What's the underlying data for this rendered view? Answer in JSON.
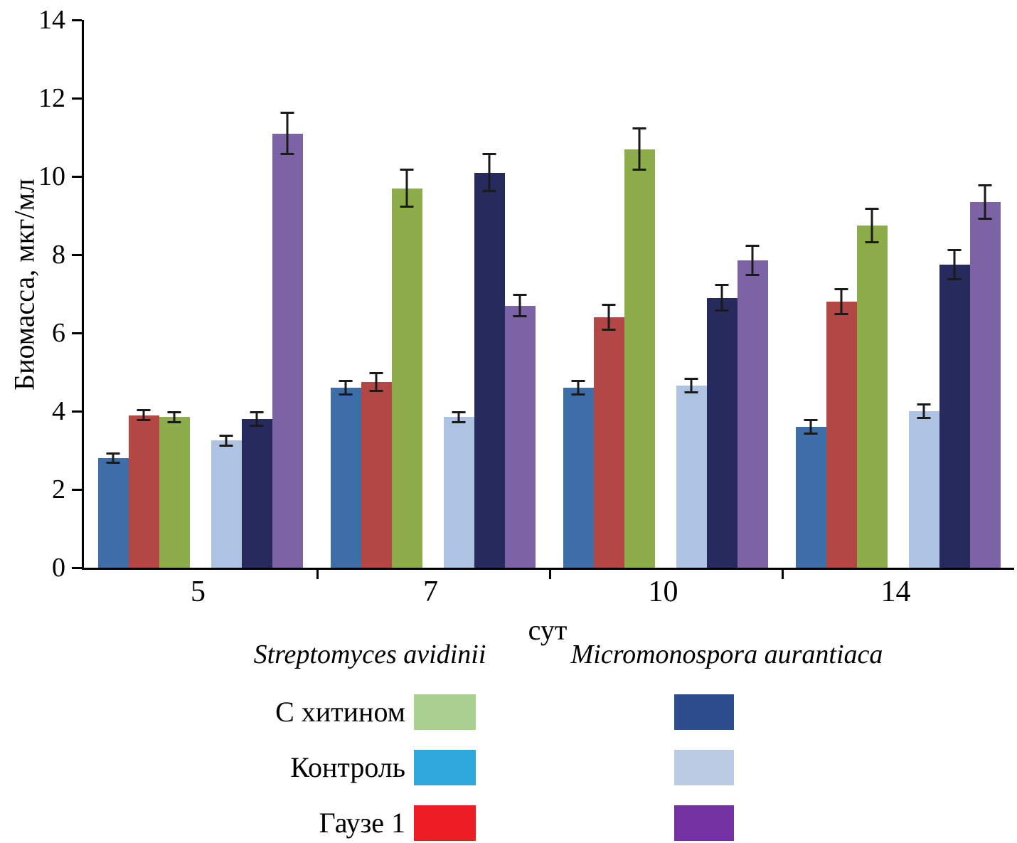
{
  "chart_data": {
    "type": "bar",
    "title": "",
    "ylabel": "Биомасса, мкг/мл",
    "xlabel": "сут",
    "ylim": [
      0,
      14
    ],
    "yticks": [
      0,
      2,
      4,
      6,
      8,
      10,
      12,
      14
    ],
    "categories": [
      "5",
      "7",
      "10",
      "14"
    ],
    "grid": false,
    "error_bars": true,
    "groups": [
      {
        "name": "Streptomyces avidinii",
        "series": [
          {
            "name": "Контроль",
            "color": "#3d6ea8",
            "values": [
              2.8,
              4.6,
              4.6,
              3.6
            ],
            "errors": [
              0.15,
              0.2,
              0.2,
              0.2
            ]
          },
          {
            "name": "Гаузе 1",
            "color": "#b34745",
            "values": [
              3.9,
              4.75,
              6.4,
              6.8
            ],
            "errors": [
              0.15,
              0.25,
              0.35,
              0.35
            ]
          },
          {
            "name": "С хитином",
            "color": "#8dad4b",
            "values": [
              3.85,
              9.7,
              10.7,
              8.75
            ],
            "errors": [
              0.15,
              0.5,
              0.55,
              0.45
            ]
          }
        ]
      },
      {
        "name": "Micromonospora aurantiaca",
        "series": [
          {
            "name": "Контроль",
            "color": "#aec2e1",
            "values": [
              3.25,
              3.85,
              4.65,
              4.0
            ],
            "errors": [
              0.15,
              0.15,
              0.2,
              0.2
            ]
          },
          {
            "name": "С хитином",
            "color": "#262a5c",
            "values": [
              3.8,
              10.1,
              6.9,
              7.75
            ],
            "errors": [
              0.2,
              0.5,
              0.35,
              0.4
            ]
          },
          {
            "name": "Гаузе 1",
            "color": "#7c63a6",
            "values": [
              11.1,
              6.7,
              7.85,
              9.35
            ],
            "errors": [
              0.55,
              0.3,
              0.4,
              0.45
            ]
          }
        ]
      }
    ],
    "legend_rows": [
      {
        "label": "С хитином",
        "left_color": "#a9d08e",
        "right_color": "#2d4d8f"
      },
      {
        "label": "Контроль",
        "left_color": "#2fa9dc",
        "right_color": "#b9cce4"
      },
      {
        "label": "Гаузе 1",
        "left_color": "#ee1c24",
        "right_color": "#7331a1"
      }
    ],
    "legend_position": "bottom"
  }
}
